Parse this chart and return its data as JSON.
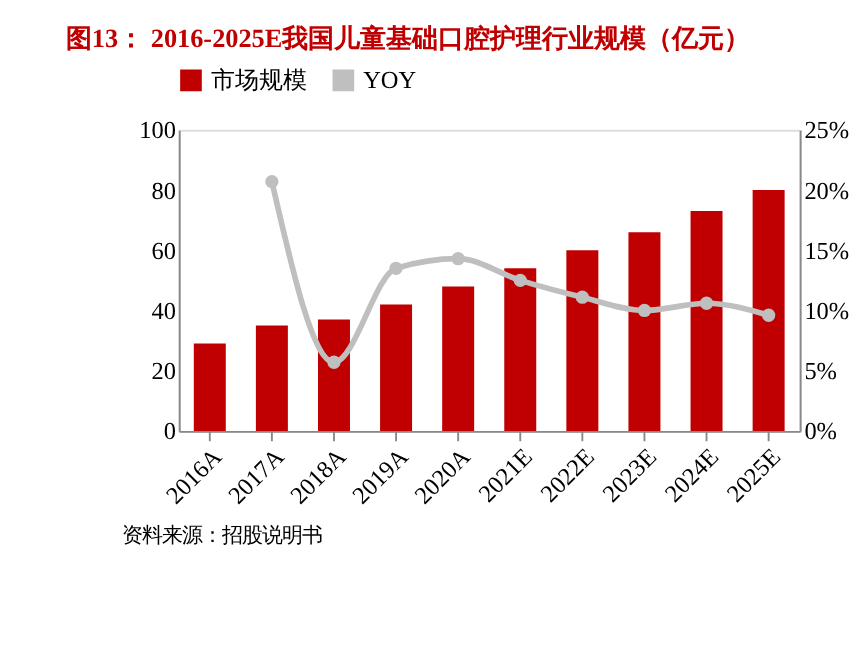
{
  "chart_data": {
    "type": "bar",
    "title": "图13：  2016-2025E我国儿童基础口腔护理行业规模（亿元）",
    "annotations": [
      "资料来源：招股说明书"
    ],
    "categories": [
      "2016A",
      "2017A",
      "2018A",
      "2019A",
      "2020A",
      "2021E",
      "2022E",
      "2023E",
      "2024E",
      "2025E"
    ],
    "series": [
      {
        "name": "市场规模",
        "color": "#c00000",
        "values": [
          29,
          35,
          37,
          42,
          48,
          54,
          60,
          66,
          73,
          80
        ]
      },
      {
        "name": "YOY",
        "type": "line",
        "axis": "y2",
        "color": "#bfbfbf",
        "marker": "circle",
        "values": [
          null,
          20.7,
          5.7,
          13.5,
          14.3,
          12.5,
          11.1,
          10.0,
          10.6,
          9.6
        ]
      }
    ],
    "ylim": [
      0,
      100
    ],
    "yticks": [
      0,
      20,
      40,
      60,
      80,
      100
    ],
    "y2lim": [
      0,
      25
    ],
    "y2ticks": [
      {
        "value": 0,
        "label": "0%"
      },
      {
        "value": 5,
        "label": "5%"
      },
      {
        "value": 10,
        "label": "10%"
      },
      {
        "value": 15,
        "label": "15%"
      },
      {
        "value": 20,
        "label": "20%"
      },
      {
        "value": 25,
        "label": "25%"
      }
    ],
    "legend": "top",
    "grid": false
  }
}
